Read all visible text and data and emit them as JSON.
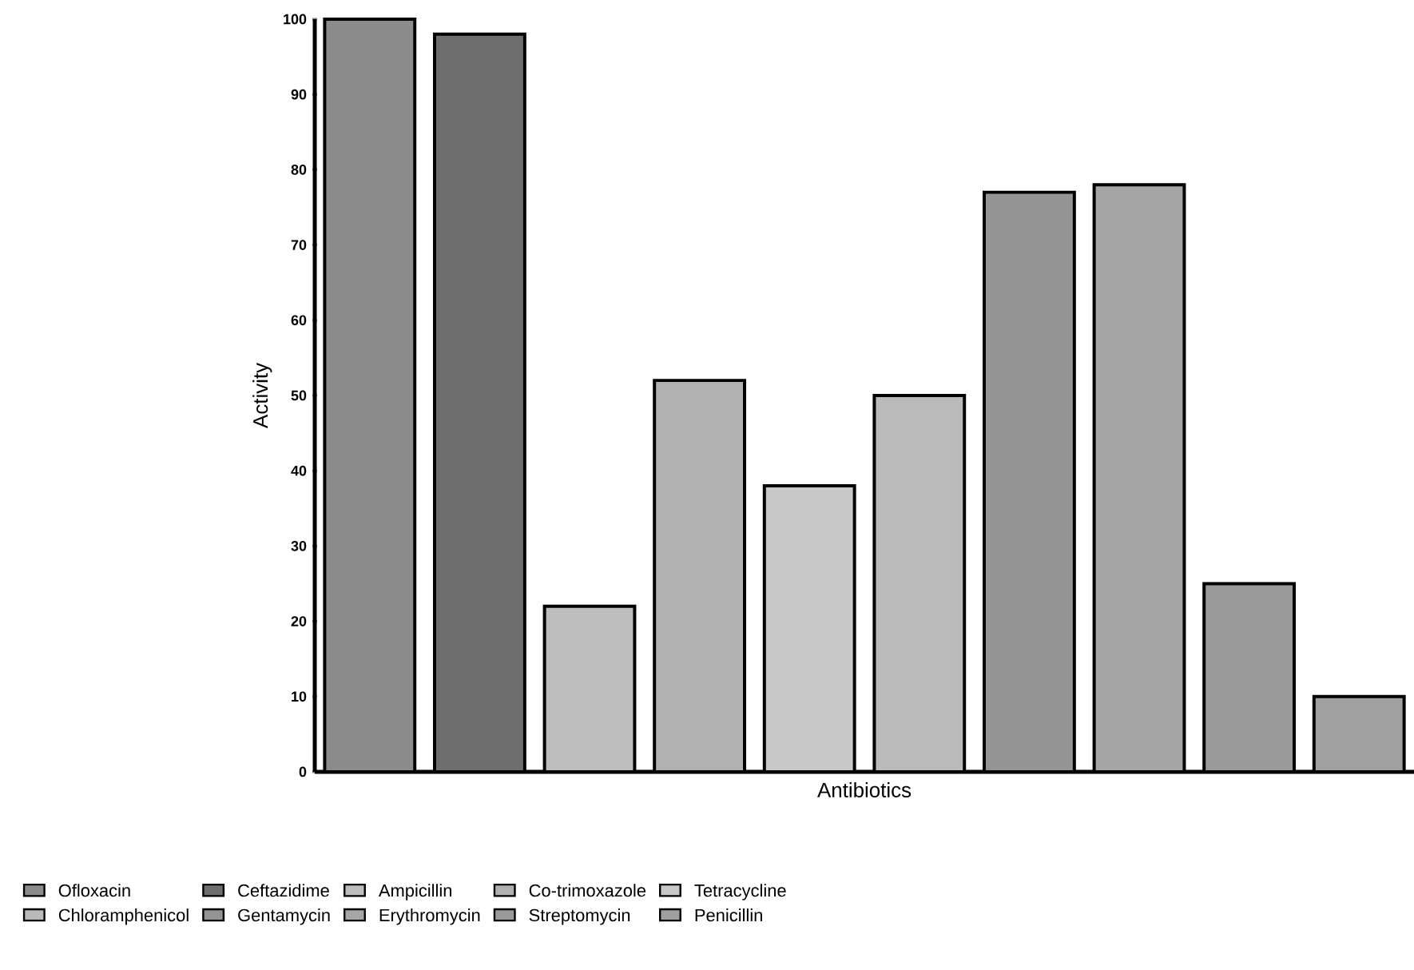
{
  "chart_data": {
    "type": "bar",
    "xlabel": "Antibiotics",
    "ylabel": "Activity",
    "categories": [
      null,
      null,
      null,
      null,
      null,
      null,
      null,
      null,
      null,
      null
    ],
    "series": [
      {
        "name": "Ofloxacin",
        "color": "#8c8c8c",
        "values": [
          100,
          null,
          null,
          null,
          null,
          null,
          null,
          null,
          null,
          null
        ]
      },
      {
        "name": "Ceftazidime",
        "color": "#6e6e6e",
        "values": [
          null,
          98,
          null,
          null,
          null,
          null,
          null,
          null,
          null,
          null
        ]
      },
      {
        "name": "Ampicillin",
        "color": "#bdbdbd",
        "values": [
          null,
          null,
          22,
          null,
          null,
          null,
          null,
          null,
          null,
          null
        ]
      },
      {
        "name": "Co-trimoxazole",
        "color": "#b0b0b0",
        "values": [
          null,
          null,
          null,
          52,
          null,
          null,
          null,
          null,
          null,
          null
        ]
      },
      {
        "name": "Tetracycline",
        "color": "#c8c8c8",
        "values": [
          null,
          null,
          null,
          null,
          38,
          null,
          null,
          null,
          null,
          null
        ]
      },
      {
        "name": "Chloramphenicol",
        "color": "#bababa",
        "values": [
          null,
          null,
          null,
          null,
          null,
          50,
          null,
          null,
          null,
          null
        ]
      },
      {
        "name": "Gentamycin",
        "color": "#949494",
        "values": [
          null,
          null,
          null,
          null,
          null,
          null,
          77,
          null,
          null,
          null
        ]
      },
      {
        "name": "Erythromycin",
        "color": "#a6a6a6",
        "values": [
          null,
          null,
          null,
          null,
          null,
          null,
          null,
          78,
          null,
          null
        ]
      },
      {
        "name": "Streptomycin",
        "color": "#9a9a9a",
        "values": [
          null,
          null,
          null,
          null,
          null,
          null,
          null,
          null,
          25,
          null
        ]
      },
      {
        "name": "Penicillin",
        "color": "#a0a0a0",
        "values": [
          null,
          null,
          null,
          null,
          null,
          null,
          null,
          null,
          null,
          10
        ]
      }
    ],
    "ylim": [
      0,
      100
    ],
    "yticks": [
      0,
      10,
      20,
      30,
      40,
      50,
      60,
      70,
      80,
      90,
      100
    ],
    "legend": "bottom",
    "grid": false
  }
}
